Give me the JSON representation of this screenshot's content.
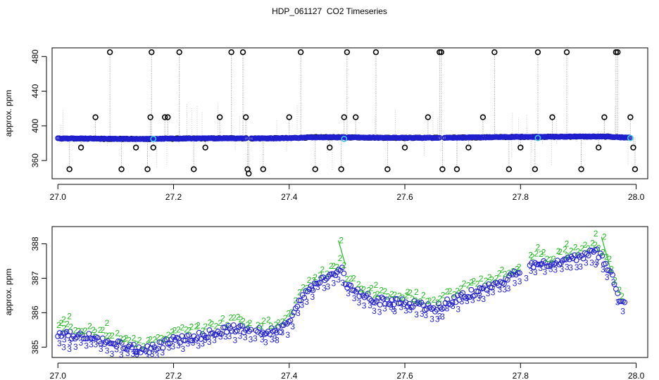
{
  "title": "HDP_061127  CO2 Timeseries",
  "chart_data": [
    {
      "type": "scatter",
      "ylabel": "approx. ppm",
      "xlim": [
        26.99,
        28.02
      ],
      "ylim": [
        339,
        490
      ],
      "x_ticks": [
        27.0,
        27.2,
        27.4,
        27.6,
        27.8,
        28.0
      ],
      "y_ticks": [
        360,
        400,
        440,
        480
      ],
      "colors": {
        "raw": "#000000",
        "raw_line": "#9a9a9a",
        "smoothed": "#1f1fd0",
        "flag": "#40c8e0"
      },
      "baseline": {
        "x": [
          27.0,
          27.05,
          27.1,
          27.15,
          27.2,
          27.25,
          27.3,
          27.33,
          27.35,
          27.4,
          27.45,
          27.5,
          27.55,
          27.6,
          27.65,
          27.7,
          27.75,
          27.8,
          27.85,
          27.9,
          27.95,
          27.99
        ],
        "y": [
          385.5,
          385.3,
          385.0,
          384.9,
          385.3,
          385.5,
          385.8,
          385.6,
          385.6,
          385.9,
          387.0,
          386.8,
          386.4,
          386.2,
          386.3,
          386.5,
          386.9,
          387.3,
          387.4,
          387.7,
          387.6,
          386.3
        ],
        "gaps": [
          [
            27.327,
            27.333
          ],
          [
            27.662,
            27.668
          ]
        ]
      },
      "spikes": {
        "x": [
          27.02,
          27.04,
          27.065,
          27.09,
          27.11,
          27.135,
          27.155,
          27.16,
          27.162,
          27.165,
          27.185,
          27.19,
          27.21,
          27.235,
          27.255,
          27.28,
          27.3,
          27.32,
          27.325,
          27.328,
          27.33,
          27.355,
          27.4,
          27.42,
          27.445,
          27.47,
          27.49,
          27.495,
          27.5,
          27.515,
          27.55,
          27.57,
          27.6,
          27.64,
          27.66,
          27.663,
          27.665,
          27.69,
          27.71,
          27.735,
          27.755,
          27.78,
          27.8,
          27.825,
          27.83,
          27.855,
          27.88,
          27.905,
          27.935,
          27.945,
          27.965,
          27.968,
          27.99,
          27.995,
          27.998
        ],
        "y": [
          350,
          375,
          410,
          485,
          350,
          375,
          350,
          410,
          485,
          375,
          410,
          410,
          485,
          350,
          375,
          410,
          485,
          485,
          410,
          350,
          345,
          350,
          410,
          485,
          350,
          375,
          350,
          410,
          485,
          410,
          485,
          350,
          375,
          410,
          485,
          485,
          350,
          350,
          375,
          410,
          485,
          350,
          375,
          350,
          485,
          410,
          485,
          350,
          375,
          410,
          485,
          485,
          410,
          375,
          350
        ]
      },
      "flags": {
        "x": [
          27.165,
          27.495,
          27.83,
          27.99
        ],
        "y": [
          385,
          385,
          386,
          386
        ]
      }
    },
    {
      "type": "scatter",
      "ylabel": "approx. ppm",
      "xlim": [
        26.99,
        28.02
      ],
      "ylim": [
        384.7,
        388.5
      ],
      "x_ticks": [
        27.0,
        27.2,
        27.4,
        27.6,
        27.8,
        28.0
      ],
      "y_ticks": [
        385,
        386,
        387,
        388
      ],
      "series": [
        {
          "symbol": "o",
          "color": "#1f1fd0"
        },
        {
          "symbol": "3",
          "color": "#1f1fd0"
        },
        {
          "symbol": "2",
          "color": "#22bb22"
        }
      ],
      "control": {
        "x": [
          27.0,
          27.05,
          27.1,
          27.15,
          27.2,
          27.25,
          27.3,
          27.33,
          27.35,
          27.38,
          27.4,
          27.42,
          27.45,
          27.48,
          27.49,
          27.5,
          27.53,
          27.55,
          27.6,
          27.65,
          27.7,
          27.75,
          27.8,
          27.83,
          27.85,
          27.9,
          27.93,
          27.945,
          27.96,
          27.97,
          27.98
        ],
        "y": [
          385.4,
          385.3,
          385.1,
          384.9,
          385.2,
          385.35,
          385.55,
          385.5,
          385.45,
          385.5,
          385.7,
          386.4,
          386.9,
          387.1,
          387.3,
          386.8,
          386.5,
          386.35,
          386.3,
          386.1,
          386.5,
          386.75,
          387.2,
          387.5,
          387.4,
          387.6,
          387.8,
          387.5,
          387.0,
          386.4,
          386.3
        ],
        "gaps": [
          [
            27.335,
            27.34
          ],
          [
            27.8,
            27.815
          ]
        ]
      },
      "high_points": {
        "x": [
          27.01,
          27.02,
          27.085,
          27.49,
          27.55,
          27.605,
          27.62,
          27.83,
          27.88,
          27.93,
          27.945
        ],
        "y": [
          385.8,
          385.9,
          385.7,
          388.1,
          386.8,
          386.6,
          386.6,
          387.9,
          388.0,
          388.3,
          388.2
        ]
      },
      "low_points": {
        "x": [
          27.01,
          27.02,
          27.135,
          27.25,
          27.375,
          27.44,
          27.58,
          27.66,
          27.73,
          27.81,
          27.93
        ],
        "y": [
          385.0,
          384.95,
          384.85,
          385.1,
          385.25,
          386.7,
          386.1,
          385.9,
          386.5,
          387.0,
          387.4
        ]
      }
    }
  ]
}
